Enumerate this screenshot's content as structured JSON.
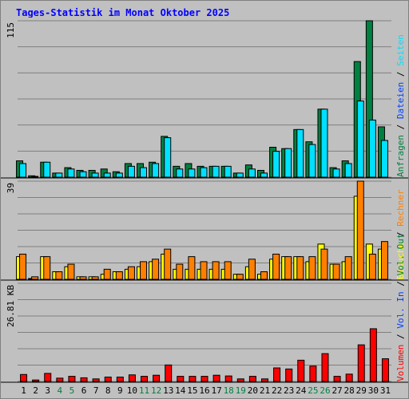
{
  "chart_data": {
    "type": "bar",
    "title": "Tages-Statistik im Monat Oktober 2025",
    "categories": [
      "1",
      "2",
      "3",
      "4",
      "5",
      "6",
      "7",
      "8",
      "9",
      "10",
      "11",
      "12",
      "13",
      "14",
      "15",
      "16",
      "17",
      "18",
      "19",
      "20",
      "21",
      "22",
      "23",
      "24",
      "25",
      "26",
      "27",
      "28",
      "29",
      "30",
      "31"
    ],
    "weekend_days": [
      "4",
      "5",
      "11",
      "12",
      "18",
      "19",
      "25",
      "26"
    ],
    "colors": {
      "background": "#c0c0c0",
      "title": "#0000ff",
      "day_label": "#000000",
      "weekend_label": "#008040",
      "gridline": "#7f7f7f",
      "anfragen": "#008040",
      "dateien": "#00e0ff",
      "seiten": "#00e0ff",
      "besuche": "#ffff00",
      "rechner": "#ff8000",
      "volumen": "#ff0000",
      "volumen_label": "#ff0000",
      "vol_in_label": "#0040ff",
      "vol_out_label": "#008040",
      "separator": "#000000"
    },
    "panels": [
      {
        "id": "hits",
        "ymax_label": "115",
        "ymax": 115,
        "series": [
          {
            "name": "Anfragen",
            "color": "#008040",
            "values": [
              12,
              1,
              11,
              3,
              7,
              5,
              5,
              6,
              4,
              10,
              10,
              11,
              30,
              8,
              10,
              8,
              8,
              8,
              3,
              9,
              5,
              22,
              21,
              35,
              26,
              50,
              7,
              12,
              85,
              115,
              37
            ]
          },
          {
            "name": "Dateien",
            "color": "#00e0ff",
            "values": [
              10,
              0,
              11,
              3,
              6,
              4,
              3,
              3,
              3,
              8,
              7,
              10,
              29,
              6,
              6,
              7,
              8,
              8,
              3,
              6,
              3,
              19,
              21,
              35,
              24,
              50,
              6,
              10,
              56,
              42,
              27
            ]
          }
        ],
        "legend": [
          {
            "text": "Anfragen",
            "color": "#008040"
          },
          {
            "text": " / ",
            "color": "#000000"
          },
          {
            "text": "Dateien",
            "color": "#0040ff"
          },
          {
            "text": " / ",
            "color": "#000000"
          },
          {
            "text": "Seiten",
            "color": "#00e0ff"
          }
        ]
      },
      {
        "id": "visits",
        "ymax_label": "39",
        "ymax": 39,
        "series": [
          {
            "name": "Besuche",
            "color": "#ffff00",
            "values": [
              9,
              0,
              9,
              3,
              5,
              1,
              1,
              2,
              3,
              4,
              5,
              7,
              10,
              4,
              4,
              4,
              4,
              4,
              2,
              5,
              2,
              8,
              9,
              9,
              7,
              14,
              6,
              7,
              33,
              14,
              12
            ]
          },
          {
            "name": "Rechner",
            "color": "#ff8000",
            "values": [
              10,
              1,
              9,
              3,
              6,
              1,
              1,
              4,
              3,
              5,
              7,
              8,
              12,
              6,
              9,
              7,
              7,
              7,
              2,
              8,
              3,
              10,
              9,
              9,
              9,
              12,
              6,
              9,
              39,
              10,
              15
            ]
          }
        ],
        "legend": [
          {
            "text": "Besuche",
            "color": "#ffff00"
          },
          {
            "text": " / ",
            "color": "#000000"
          },
          {
            "text": "Rechner",
            "color": "#ff8000"
          }
        ]
      },
      {
        "id": "volume",
        "ymax_label": "26.81 KB",
        "ymax": 26.81,
        "series": [
          {
            "name": "Volumen",
            "color": "#ff0000",
            "values": [
              1.9,
              0.4,
              2.2,
              0.9,
              1.4,
              1.0,
              0.7,
              1.2,
              1.2,
              1.8,
              1.4,
              1.7,
              4.5,
              1.4,
              1.4,
              1.4,
              1.7,
              1.5,
              0.7,
              1.4,
              0.7,
              3.7,
              3.4,
              5.8,
              4.2,
              7.6,
              1.4,
              2.0,
              10.0,
              14.4,
              6.2
            ]
          }
        ],
        "legend": [
          {
            "text": "Volumen",
            "color": "#ff0000"
          },
          {
            "text": " / ",
            "color": "#000000"
          },
          {
            "text": "Vol. In",
            "color": "#0040ff"
          },
          {
            "text": " / ",
            "color": "#000000"
          },
          {
            "text": "Vol. Out",
            "color": "#008040"
          }
        ]
      }
    ]
  }
}
